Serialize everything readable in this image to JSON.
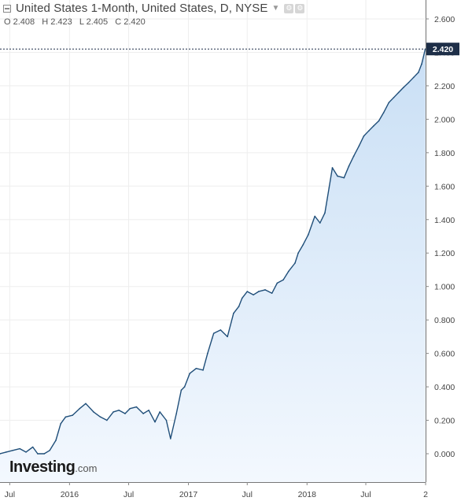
{
  "header": {
    "title": "United States 1-Month, United States, D, NYSE",
    "ohlc": {
      "o_label": "O",
      "o_value": "2.408",
      "h_label": "H",
      "h_value": "2.423",
      "l_label": "L",
      "l_value": "2.405",
      "c_label": "C",
      "c_value": "2.420"
    },
    "icons": [
      "collapse-icon",
      "chevron-down-icon",
      "settings-icon",
      "settings-icon"
    ]
  },
  "logo": {
    "brand": "Investing",
    "suffix": ".com"
  },
  "colors": {
    "line": "#1f4e79",
    "fill_top": "#c9dff5",
    "fill_bottom": "#f3f8fe",
    "grid": "#eeeeee",
    "price_tag": "#1e2f48"
  },
  "chart_data": {
    "type": "area",
    "title": "United States 1-Month, United States, D, NYSE",
    "xlabel": "",
    "ylabel": "",
    "current_value": "2.420",
    "x_ticks": [
      "Jul",
      "2016",
      "Jul",
      "2017",
      "Jul",
      "2018",
      "Jul",
      "2"
    ],
    "x_tick_dates": [
      "2015-07-01",
      "2016-01-01",
      "2016-07-01",
      "2017-01-01",
      "2017-07-01",
      "2018-01-01",
      "2018-07-01",
      "2019-01-01"
    ],
    "y_ticks": [
      "0.000",
      "0.200",
      "0.400",
      "0.600",
      "0.800",
      "1.000",
      "1.200",
      "1.400",
      "1.600",
      "1.800",
      "2.000",
      "2.200",
      "2.400",
      "2.600"
    ],
    "xlim": [
      "2015-06-01",
      "2019-01-01"
    ],
    "ylim": [
      -0.1,
      2.7
    ],
    "grid": true,
    "series": [
      {
        "name": "United States 1-Month",
        "x": [
          "2015-06-01",
          "2015-06-20",
          "2015-07-10",
          "2015-08-01",
          "2015-08-20",
          "2015-09-10",
          "2015-09-25",
          "2015-10-15",
          "2015-11-01",
          "2015-11-20",
          "2015-12-05",
          "2015-12-20",
          "2016-01-10",
          "2016-02-01",
          "2016-02-20",
          "2016-03-15",
          "2016-04-05",
          "2016-04-25",
          "2016-05-15",
          "2016-06-01",
          "2016-06-20",
          "2016-07-05",
          "2016-07-25",
          "2016-08-15",
          "2016-09-01",
          "2016-09-20",
          "2016-10-05",
          "2016-10-25",
          "2016-11-07",
          "2016-11-25",
          "2016-12-10",
          "2016-12-20",
          "2017-01-05",
          "2017-01-25",
          "2017-02-15",
          "2017-03-01",
          "2017-03-15",
          "2017-03-20",
          "2017-04-10",
          "2017-05-01",
          "2017-05-20",
          "2017-06-05",
          "2017-06-15",
          "2017-07-01",
          "2017-07-20",
          "2017-08-05",
          "2017-08-25",
          "2017-09-15",
          "2017-10-01",
          "2017-10-20",
          "2017-11-05",
          "2017-11-25",
          "2017-12-05",
          "2017-12-20",
          "2018-01-05",
          "2018-01-25",
          "2018-02-10",
          "2018-02-25",
          "2018-03-10",
          "2018-03-20",
          "2018-04-05",
          "2018-04-25",
          "2018-05-10",
          "2018-05-25",
          "2018-06-10",
          "2018-06-25",
          "2018-07-10",
          "2018-07-25",
          "2018-08-10",
          "2018-08-25",
          "2018-09-10",
          "2018-09-25",
          "2018-10-10",
          "2018-10-25",
          "2018-11-10",
          "2018-11-25",
          "2018-12-10",
          "2018-12-20",
          "2018-12-31"
        ],
        "values": [
          0.0,
          0.01,
          0.02,
          0.03,
          0.01,
          0.04,
          0.0,
          0.0,
          0.02,
          0.08,
          0.18,
          0.22,
          0.23,
          0.27,
          0.3,
          0.25,
          0.22,
          0.2,
          0.25,
          0.26,
          0.24,
          0.27,
          0.28,
          0.24,
          0.26,
          0.19,
          0.25,
          0.2,
          0.09,
          0.24,
          0.38,
          0.4,
          0.48,
          0.51,
          0.5,
          0.6,
          0.69,
          0.72,
          0.74,
          0.7,
          0.84,
          0.88,
          0.93,
          0.97,
          0.95,
          0.97,
          0.98,
          0.96,
          1.02,
          1.04,
          1.09,
          1.14,
          1.2,
          1.25,
          1.31,
          1.42,
          1.38,
          1.44,
          1.59,
          1.71,
          1.66,
          1.65,
          1.72,
          1.78,
          1.84,
          1.9,
          1.93,
          1.96,
          1.99,
          2.04,
          2.1,
          2.13,
          2.16,
          2.19,
          2.22,
          2.25,
          2.28,
          2.33,
          2.42
        ]
      }
    ]
  }
}
